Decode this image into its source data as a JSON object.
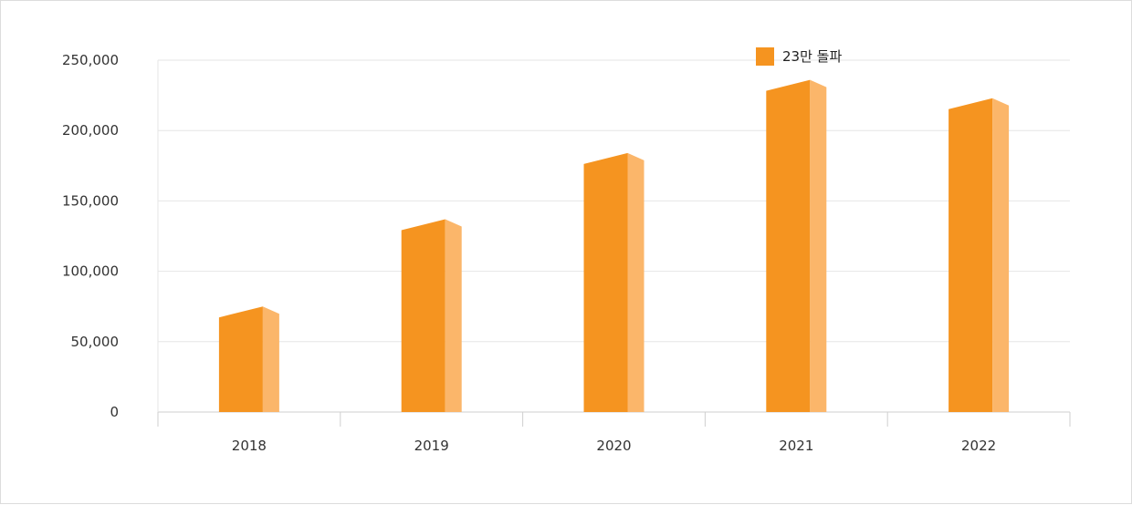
{
  "chart_data": {
    "type": "bar",
    "categories": [
      "2018",
      "2019",
      "2020",
      "2021",
      "2022"
    ],
    "series": [
      {
        "name": "23만 돌파",
        "values": [
          75000,
          137000,
          184000,
          236000,
          223000
        ]
      }
    ],
    "ylim": [
      0,
      250000
    ],
    "yticks": [
      0,
      50000,
      100000,
      150000,
      200000,
      250000
    ],
    "ytick_labels": [
      "0",
      "50,000",
      "100,000",
      "150,000",
      "200,000",
      "250,000"
    ],
    "title": "",
    "xlabel": "",
    "ylabel": "",
    "grid": true,
    "legend_position": "top-right",
    "colors": {
      "bar_front": "#F59420",
      "bar_side": "#FBB66A",
      "bar_top": "#F8A94D",
      "grid": "#e6e6e6",
      "axis": "#cfcfcf"
    }
  }
}
